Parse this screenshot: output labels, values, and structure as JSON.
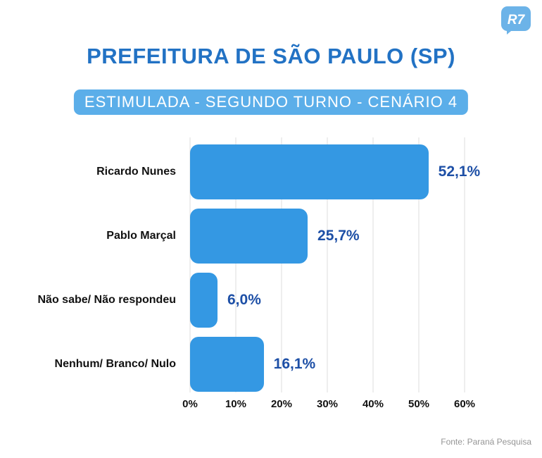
{
  "logo": {
    "text": "R7"
  },
  "header": {
    "title": "PREFEITURA DE SÃO PAULO (SP)",
    "subtitle": "ESTIMULADA - SEGUNDO TURNO - CENÁRIO 4"
  },
  "footer": {
    "source": "Fonte: Paraná Pesquisa"
  },
  "colors": {
    "title": "#2272c4",
    "badge_bg": "#5baee9",
    "logo": "#6cb3e8"
  },
  "chart_data": {
    "type": "bar",
    "orientation": "horizontal",
    "title": "PREFEITURA DE SÃO PAULO (SP)",
    "subtitle": "ESTIMULADA - SEGUNDO TURNO - CENÁRIO 4",
    "categories": [
      "Ricardo Nunes",
      "Pablo Marçal",
      "Não sabe/ Não respondeu",
      "Nenhum/ Branco/ Nulo"
    ],
    "values": [
      52.1,
      25.7,
      6.0,
      16.1
    ],
    "value_labels": [
      "52,1%",
      "25,7%",
      "6,0%",
      "16,1%"
    ],
    "x_ticks": [
      "0%",
      "10%",
      "20%",
      "30%",
      "40%",
      "50%",
      "60%"
    ],
    "xlim": [
      0,
      60
    ],
    "grid": true,
    "grid_color": "#dddddd",
    "bar_color": "#3498e3",
    "value_color": "#1d4fa6",
    "source": "Fonte: Paraná Pesquisa"
  }
}
